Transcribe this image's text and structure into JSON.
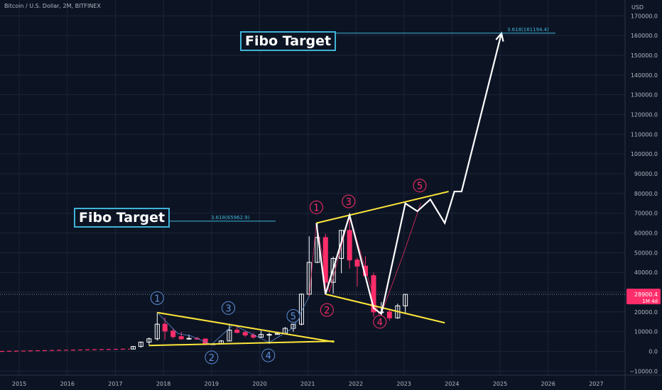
{
  "header": {
    "title": "Bitcoin / U.S. Dollar, 2M, BITFINEX",
    "currency": "USD"
  },
  "colors": {
    "background": "#0c1424",
    "up": "#ffffff",
    "down": "#ff2e6a",
    "trendline": "#ffe73a",
    "projection": "#ffffff",
    "fibo": "#3fb3d6",
    "wave_small": "#5f8ed8",
    "wave_big": "#ff2e6a"
  },
  "annotations": {
    "fibo_target_1": {
      "label": "Fibo Target",
      "level_text": "3.618(65962.9)",
      "value": 65962.9
    },
    "fibo_target_2": {
      "label": "Fibo Target",
      "level_text": "3.618(161194.4)",
      "value": 161194.4
    }
  },
  "price_tag": {
    "price": "28900.4",
    "timer": "1M 4d",
    "value": 28900.4
  },
  "chart_data": {
    "type": "candlestick",
    "xlabel": "",
    "ylabel": "",
    "x_ticks": [
      "2015",
      "2016",
      "2017",
      "2018",
      "2019",
      "2020",
      "2021",
      "2022",
      "2023",
      "2024",
      "2025",
      "2026",
      "2027"
    ],
    "y_ticks": [
      "170000.0",
      "160000.0",
      "150000.0",
      "140000.0",
      "130000.0",
      "120000.0",
      "110000.0",
      "100000.0",
      "90000.0",
      "80000.0",
      "70000.0",
      "60000.0",
      "50000.0",
      "40000.0",
      "30000.0",
      "20000.0",
      "10000.0",
      "0.0",
      "−10000.0"
    ],
    "y_range": [
      -12000,
      178000
    ],
    "x_range": [
      2014.6,
      2027.6
    ],
    "pre_history": {
      "t": [
        2014.6,
        2017.3
      ],
      "v": [
        0,
        1200
      ]
    },
    "candles": [
      {
        "t": 2017.37,
        "o": 1200,
        "h": 2700,
        "l": 1100,
        "c": 2500
      },
      {
        "t": 2017.53,
        "o": 2500,
        "h": 5000,
        "l": 1900,
        "c": 4700
      },
      {
        "t": 2017.7,
        "o": 4700,
        "h": 7000,
        "l": 3000,
        "c": 6400
      },
      {
        "t": 2017.87,
        "o": 6400,
        "h": 19700,
        "l": 5500,
        "c": 13800
      },
      {
        "t": 2018.03,
        "o": 13800,
        "h": 17200,
        "l": 5900,
        "c": 10300
      },
      {
        "t": 2018.2,
        "o": 10300,
        "h": 11700,
        "l": 6400,
        "c": 7500
      },
      {
        "t": 2018.37,
        "o": 7500,
        "h": 9900,
        "l": 5800,
        "c": 6400
      },
      {
        "t": 2018.53,
        "o": 6400,
        "h": 8500,
        "l": 5900,
        "c": 6600
      },
      {
        "t": 2018.7,
        "o": 6600,
        "h": 7400,
        "l": 6100,
        "c": 6300
      },
      {
        "t": 2018.87,
        "o": 6300,
        "h": 6600,
        "l": 3100,
        "c": 3700
      },
      {
        "t": 2019.03,
        "o": 3700,
        "h": 4200,
        "l": 3300,
        "c": 3800
      },
      {
        "t": 2019.2,
        "o": 3800,
        "h": 5800,
        "l": 3600,
        "c": 5300
      },
      {
        "t": 2019.37,
        "o": 5300,
        "h": 13900,
        "l": 5200,
        "c": 10800
      },
      {
        "t": 2019.53,
        "o": 10800,
        "h": 12300,
        "l": 9200,
        "c": 9600
      },
      {
        "t": 2019.7,
        "o": 9600,
        "h": 10500,
        "l": 7300,
        "c": 8300
      },
      {
        "t": 2019.87,
        "o": 8300,
        "h": 9500,
        "l": 6400,
        "c": 7200
      },
      {
        "t": 2020.03,
        "o": 7200,
        "h": 10500,
        "l": 6900,
        "c": 8600
      },
      {
        "t": 2020.2,
        "o": 8600,
        "h": 9500,
        "l": 3800,
        "c": 8600
      },
      {
        "t": 2020.37,
        "o": 8600,
        "h": 10000,
        "l": 8600,
        "c": 9100
      },
      {
        "t": 2020.53,
        "o": 9100,
        "h": 12400,
        "l": 8900,
        "c": 11700
      },
      {
        "t": 2020.7,
        "o": 11700,
        "h": 14000,
        "l": 10000,
        "c": 13800
      },
      {
        "t": 2020.87,
        "o": 13800,
        "h": 29300,
        "l": 13200,
        "c": 29000
      },
      {
        "t": 2021.03,
        "o": 29000,
        "h": 58300,
        "l": 28100,
        "c": 45100
      },
      {
        "t": 2021.2,
        "o": 45100,
        "h": 64800,
        "l": 44800,
        "c": 57700
      },
      {
        "t": 2021.37,
        "o": 57700,
        "h": 59500,
        "l": 28800,
        "c": 35000
      },
      {
        "t": 2021.53,
        "o": 35000,
        "h": 48000,
        "l": 29300,
        "c": 47100
      },
      {
        "t": 2021.7,
        "o": 47100,
        "h": 61500,
        "l": 39600,
        "c": 61300
      },
      {
        "t": 2021.87,
        "o": 61300,
        "h": 69000,
        "l": 42000,
        "c": 46300
      },
      {
        "t": 2022.03,
        "o": 46300,
        "h": 47500,
        "l": 32900,
        "c": 43200
      },
      {
        "t": 2022.2,
        "o": 43200,
        "h": 48200,
        "l": 37700,
        "c": 38400
      },
      {
        "t": 2022.37,
        "o": 38400,
        "h": 39900,
        "l": 17600,
        "c": 20000
      },
      {
        "t": 2022.53,
        "o": 20000,
        "h": 25000,
        "l": 18500,
        "c": 20000
      },
      {
        "t": 2022.7,
        "o": 20000,
        "h": 21500,
        "l": 15500,
        "c": 17000
      },
      {
        "t": 2022.87,
        "o": 17000,
        "h": 24200,
        "l": 16500,
        "c": 23100
      },
      {
        "t": 2023.03,
        "o": 23100,
        "h": 29000,
        "l": 19600,
        "c": 28900
      }
    ],
    "trendlines": [
      {
        "points": [
          [
            2017.87,
            19700
          ],
          [
            2021.55,
            4800
          ]
        ]
      },
      {
        "points": [
          [
            2017.7,
            3000
          ],
          [
            2021.55,
            5200
          ]
        ]
      },
      {
        "points": [
          [
            2021.18,
            65000
          ],
          [
            2023.93,
            81000
          ]
        ]
      },
      {
        "points": [
          [
            2021.37,
            29000
          ],
          [
            2023.85,
            14500
          ]
        ]
      }
    ],
    "projection": [
      [
        2021.18,
        65000
      ],
      [
        2021.37,
        29000
      ],
      [
        2021.87,
        69000
      ],
      [
        2022.37,
        22000
      ],
      [
        2022.53,
        19000
      ],
      [
        2023.03,
        75000
      ],
      [
        2023.28,
        71000
      ],
      [
        2023.55,
        77000
      ],
      [
        2023.85,
        65000
      ],
      [
        2024.05,
        81000
      ],
      [
        2024.2,
        81000
      ],
      [
        2025.03,
        161194.4
      ]
    ],
    "wave_labels": [
      {
        "text": "1",
        "t": 2017.87,
        "v": 27000,
        "style": "small"
      },
      {
        "text": "2",
        "t": 2019.0,
        "v": -3000,
        "style": "small"
      },
      {
        "text": "3",
        "t": 2019.35,
        "v": 22000,
        "style": "small"
      },
      {
        "text": "4",
        "t": 2020.18,
        "v": -2000,
        "style": "small"
      },
      {
        "text": "5",
        "t": 2020.7,
        "v": 18000,
        "style": "small"
      },
      {
        "text": "1",
        "t": 2021.18,
        "v": 73000,
        "style": "big"
      },
      {
        "text": "2",
        "t": 2021.4,
        "v": 21000,
        "style": "big"
      },
      {
        "text": "3",
        "t": 2021.85,
        "v": 76000,
        "style": "big"
      },
      {
        "text": "4",
        "t": 2022.5,
        "v": 15000,
        "style": "big"
      },
      {
        "text": "5",
        "t": 2023.33,
        "v": 84000,
        "style": "big"
      }
    ]
  }
}
